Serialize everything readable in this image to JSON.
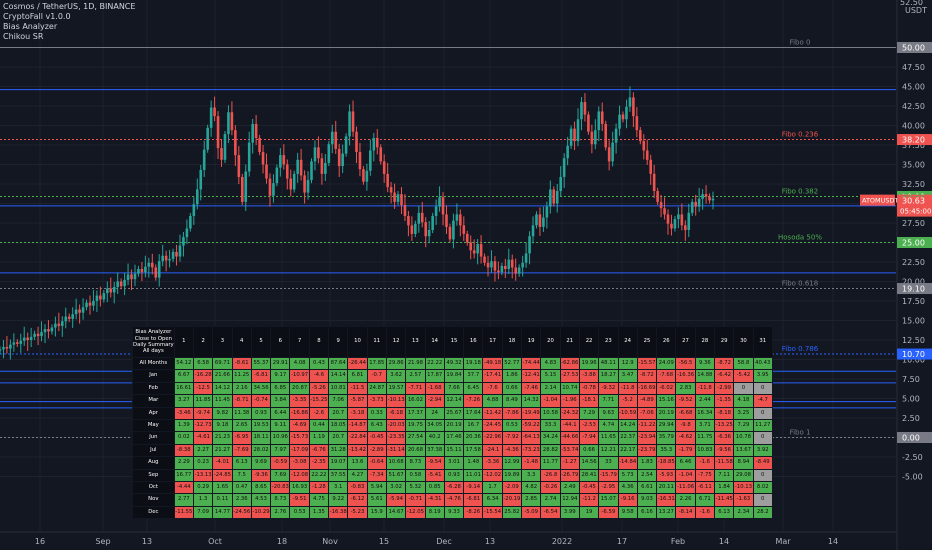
{
  "legend": {
    "title": "Cosmos / TetherUS, 1D, BINANCE",
    "indicators": [
      "CryptoFall v1.0.0",
      "Bias Analyzer",
      "Chikou SR"
    ]
  },
  "axis": {
    "currency": "USDT",
    "y_ticks": [
      50.0,
      47.5,
      45.0,
      42.5,
      40.0,
      37.5,
      35.0,
      32.5,
      30.0,
      27.5,
      25.0,
      22.5,
      20.0,
      17.5,
      15.0,
      12.5,
      10.0,
      7.5,
      5.0,
      2.5,
      0.0,
      -2.5,
      -5.0
    ],
    "y_tick_labels": [
      "50.00",
      "47.50",
      "45.00",
      "42.50",
      "40.00",
      "37.50",
      "35.00",
      "32.50",
      "30.00",
      "27.50",
      "25.00",
      "22.50",
      "20.00",
      "17.50",
      "15.00",
      "12.50",
      "10.00",
      "7.50",
      "5.00",
      "2.50",
      "0.00",
      "-2.50",
      "-5.00"
    ],
    "top_partial_label": "52.50",
    "x_labels": [
      "16",
      "Sep",
      "13",
      "Oct",
      "18",
      "Nov",
      "15",
      "Dec",
      "13",
      "2022",
      "17",
      "Feb",
      "14",
      "Mar",
      "14"
    ]
  },
  "price_badges": {
    "last_price": "30.90",
    "symbol": "ATOMUSDT",
    "close": "30.63",
    "countdown": "05:45:00"
  },
  "colors": {
    "background": "#131722",
    "up": "#26a69a",
    "down": "#ef5350",
    "blue_line": "#2962ff",
    "green_line": "#4caf50",
    "red_line": "#ef5350",
    "fibo_gray": "#787b86"
  },
  "chart_data": {
    "type": "candlestick",
    "title": "Cosmos / TetherUS, 1D, BINANCE",
    "ylabel": "USDT",
    "ylim": [
      -6.5,
      53.5
    ],
    "x_range": [
      "2021-08-02",
      "2022-03-24"
    ],
    "candle_closes": [
      11.3,
      11.6,
      11.4,
      11.9,
      12.2,
      12.0,
      12.4,
      12.8,
      12.5,
      12.9,
      13.3,
      13.0,
      13.5,
      13.9,
      13.6,
      14.1,
      14.6,
      14.3,
      14.9,
      15.5,
      15.2,
      15.8,
      16.4,
      16.0,
      16.7,
      17.3,
      16.9,
      17.5,
      18.2,
      17.7,
      18.5,
      19.1,
      18.6,
      19.3,
      20.0,
      19.4,
      20.2,
      20.9,
      20.3,
      21.0,
      21.6,
      21.2,
      21.9,
      22.4,
      21.8,
      20.5,
      22.6,
      23.3,
      22.7,
      22.9,
      23.8,
      23.2,
      24.6,
      25.7,
      26.8,
      28.4,
      29.9,
      31.8,
      34.3,
      36.9,
      39.7,
      42.3,
      41.2,
      37.1,
      35.6,
      38.9,
      41.7,
      39.4,
      36.2,
      33.4,
      30.2,
      34.1,
      37.8,
      40.2,
      38.4,
      36.6,
      35.0,
      33.2,
      31.0,
      32.6,
      34.6,
      36.2,
      35.0,
      33.2,
      31.8,
      33.8,
      35.6,
      33.6,
      31.4,
      33.0,
      35.4,
      37.2,
      35.8,
      33.8,
      35.2,
      37.6,
      39.2,
      37.0,
      34.8,
      36.4,
      38.6,
      41.8,
      39.2,
      36.6,
      34.4,
      32.8,
      34.2,
      36.8,
      38.4,
      37.2,
      35.4,
      33.8,
      32.1,
      31.4,
      30.2,
      31.2,
      29.8,
      28.4,
      27.2,
      26.1,
      27.4,
      28.8,
      27.6,
      25.8,
      26.6,
      28.4,
      29.6,
      30.8,
      28.6,
      27.0,
      25.4,
      27.8,
      28.6,
      27.2,
      26.1,
      25.0,
      24.0,
      23.6,
      24.8,
      23.2,
      22.4,
      21.8,
      22.6,
      21.4,
      21.2,
      22.0,
      21.6,
      22.8,
      21.8,
      21.0,
      21.8,
      22.4,
      23.6,
      25.8,
      27.2,
      28.6,
      27.0,
      28.2,
      29.6,
      31.8,
      30.0,
      31.6,
      33.4,
      35.8,
      37.4,
      39.6,
      38.0,
      40.8,
      43.0,
      41.4,
      39.2,
      37.6,
      39.4,
      41.8,
      40.2,
      37.2,
      35.4,
      37.8,
      39.6,
      41.4,
      40.8,
      42.4,
      43.6,
      41.2,
      39.4,
      38.0,
      36.8,
      35.6,
      33.8,
      31.6,
      30.2,
      29.4,
      28.6,
      27.4,
      26.8,
      28.0,
      28.6,
      27.2,
      26.6,
      28.8,
      30.2,
      29.6,
      30.6,
      31.2,
      30.9,
      30.4,
      30.63
    ],
    "horizontal_lines": [
      {
        "label": "Fibo 0",
        "value": 50.0,
        "value_label": "50.00",
        "style": "solid",
        "color": "#787b86"
      },
      {
        "label": "",
        "value": 44.6,
        "style": "solid",
        "color": "#2962ff"
      },
      {
        "label": "Fibo 0.236",
        "value": 38.2,
        "value_label": "38.20",
        "style": "dotted",
        "color": "#ef5350"
      },
      {
        "label": "Fibo 0.382",
        "value": 30.9,
        "value_label": "30.90",
        "style": "dotted",
        "color": "#4caf50"
      },
      {
        "label": "",
        "value": 29.7,
        "style": "solid",
        "color": "#2962ff"
      },
      {
        "label": "Hosoda 50%",
        "value": 25.0,
        "value_label": "25.00",
        "style": "dotted",
        "color": "#4caf50"
      },
      {
        "label": "",
        "value": 21.1,
        "style": "solid",
        "color": "#2962ff"
      },
      {
        "label": "Fibo 0.618",
        "value": 19.1,
        "value_label": "19.10",
        "style": "dotted",
        "color": "#787b86"
      },
      {
        "label": "Fibo 0.786",
        "value": 10.7,
        "value_label": "10.70",
        "style": "dotted",
        "color": "#2962ff"
      },
      {
        "label": "",
        "value": 8.5,
        "style": "solid",
        "color": "#2962ff"
      },
      {
        "label": "",
        "value": 7.0,
        "style": "solid",
        "color": "#2962ff"
      },
      {
        "label": "",
        "value": 4.6,
        "style": "solid",
        "color": "#2962ff"
      },
      {
        "label": "",
        "value": 3.8,
        "style": "solid",
        "color": "#2962ff"
      },
      {
        "label": "Fibo 1",
        "value": 0.0,
        "value_label": "0.00",
        "style": "dotted",
        "color": "#787b86"
      }
    ]
  },
  "bias_table": {
    "header_label": [
      "Bias Analyzer",
      "Close to Open",
      "Daily Summary",
      "All days"
    ],
    "days": [
      "1",
      "2",
      "3",
      "4",
      "5",
      "6",
      "7",
      "8",
      "9",
      "10",
      "11",
      "12",
      "13",
      "14",
      "15",
      "16",
      "17",
      "18",
      "19",
      "20",
      "21",
      "22",
      "23",
      "24",
      "25",
      "26",
      "27",
      "28",
      "29",
      "30",
      "31"
    ],
    "rows": [
      {
        "label": "All Months",
        "values": [
          "54.12",
          "6.58",
          "69.71",
          "-8.61",
          "55.37",
          "29.91",
          "4.08",
          "0.43",
          "87.64",
          "-26.44",
          "17.85",
          "29.86",
          "21.98",
          "22.22",
          "49.32",
          "19.18",
          "-49.18",
          "52.77",
          "-74.44",
          "4.83",
          "-62.86",
          "19.96",
          "48.11",
          "12.9",
          "-15.57",
          "24.09",
          "-56.5",
          "9.36",
          "-8.72",
          "58.8",
          "40.43"
        ]
      },
      {
        "label": "Jan",
        "values": [
          "6.67",
          "-16.28",
          "21.66",
          "11.25",
          "-6.81",
          "9.17",
          "-10.97",
          "-4.6",
          "14.14",
          "6.81",
          "-0.7",
          "3.62",
          "2.57",
          "17.87",
          "19.84",
          "37.7",
          "-17.41",
          "1.86",
          "-12.41",
          "5.15",
          "-27.53",
          "-3.88",
          "18.27",
          "3.47",
          "-8.72",
          "-7.68",
          "-16.36",
          "14.88",
          "-6.42",
          "-5.42",
          "3.95"
        ]
      },
      {
        "label": "Feb",
        "values": [
          "16.61",
          "-12.5",
          "14.12",
          "2.16",
          "34.56",
          "6.85",
          "20.87",
          "-5.26",
          "10.81",
          "-11.5",
          "24.87",
          "19.57",
          "-7.71",
          "-1.68",
          "7.66",
          "6.45",
          "-7.6",
          "0.66",
          "-7.46",
          "2.14",
          "10.74",
          "-0.78",
          "-9.32",
          "-11.8",
          "-16.69",
          "-6.02",
          "2.83",
          "-11.8",
          "-2.99",
          "0",
          "0"
        ]
      },
      {
        "label": "Mar",
        "values": [
          "3.27",
          "11.85",
          "11.45",
          "-8.71",
          "-0.74",
          "3.84",
          "-3.35",
          "-15.25",
          "7.06",
          "-5.87",
          "-3.73",
          "-10.13",
          "16.02",
          "-2.94",
          "12.14",
          "-7.26",
          "4.88",
          "8.49",
          "14.32",
          "-1.04",
          "-1.96",
          "-18.1",
          "7.71",
          "-5.2",
          "-4.89",
          "15.16",
          "-9.52",
          "2.44",
          "-1.35",
          "4.18",
          "-4.7"
        ]
      },
      {
        "label": "Apr",
        "values": [
          "-3.46",
          "-9.74",
          "9.82",
          "11.38",
          "0.93",
          "6.44",
          "-16.86",
          "-2.6",
          "20.7",
          "-3.18",
          "0.33",
          "-6.18",
          "17.37",
          "24",
          "25.67",
          "17.64",
          "-11.42",
          "-7.86",
          "-19.49",
          "10.58",
          "-24.32",
          "7.29",
          "9.63",
          "-10.59",
          "-7.06",
          "20.19",
          "-6.68",
          "16.34",
          "-8.18",
          "3.25",
          "0"
        ]
      },
      {
        "label": "May",
        "values": [
          "1.39",
          "-12.73",
          "9.18",
          "2.65",
          "19.53",
          "9.11",
          "-4.69",
          "0.44",
          "18.05",
          "-14.87",
          "6.43",
          "-20.03",
          "19.75",
          "34.05",
          "20.19",
          "16.7",
          "-24.45",
          "0.53",
          "-59.22",
          "33.3",
          "-44.1",
          "-2.53",
          "4.74",
          "14.24",
          "-11.22",
          "29.94",
          "-9.8",
          "3.71",
          "-13.25",
          "7.29",
          "11.27"
        ]
      },
      {
        "label": "Jun",
        "values": [
          "0.02",
          "-4.61",
          "21.23",
          "-6.95",
          "18.11",
          "10.96",
          "-15.73",
          "1.19",
          "20.7",
          "-22.84",
          "-0.45",
          "-23.35",
          "27.54",
          "40.2",
          "17.46",
          "20.36",
          "-22.96",
          "-7.92",
          "-64.13",
          "34.24",
          "-44.66",
          "-7.94",
          "11.65",
          "22.37",
          "-23.94",
          "35.79",
          "-4.62",
          "11.75",
          "-6.36",
          "10.78",
          "0"
        ]
      },
      {
        "label": "Jul",
        "values": [
          "-8.38",
          "2.27",
          "21.27",
          "-7.69",
          "28.02",
          "7.97",
          "-17.09",
          "-6.76",
          "31.28",
          "-13.42",
          "-2.89",
          "-31.14",
          "20.68",
          "37.38",
          "15.11",
          "17.58",
          "-24.1",
          "-4.36",
          "-73.23",
          "28.82",
          "-53.74",
          "0.66",
          "12.21",
          "22.17",
          "-23.79",
          "35.3",
          "-1.79",
          "10.83",
          "-9.56",
          "13.67",
          "3.92"
        ]
      },
      {
        "label": "Aug",
        "values": [
          "2.29",
          "0.23",
          "-4.01",
          "6.13",
          "9.69",
          "-0.59",
          "-3.08",
          "-2.35",
          "19.07",
          "13.6",
          "-0.64",
          "10.68",
          "8.73",
          "-9.54",
          "3.01",
          "1.48",
          "-3.36",
          "12.99",
          "-1.48",
          "11.77",
          "-1.27",
          "14.56",
          "33",
          "-14.84",
          "1.83",
          "-18.85",
          "6.46",
          "-1.6",
          "-11.58",
          "8.94",
          "-8.49"
        ]
      },
      {
        "label": "Sep",
        "values": [
          "16.77",
          "-13.13",
          "-24.85",
          "7.5",
          "-9.36",
          "7.69",
          "-12.08",
          "22.22",
          "37.55",
          "4.27",
          "-7.34",
          "51.67",
          "0.58",
          "-5.41",
          "0.93",
          "11.01",
          "-12.02",
          "19.89",
          "3.3",
          "-26.8",
          "-26.79",
          "28.41",
          "-15.79",
          "5.73",
          "2.54",
          "-5.93",
          "-1.04",
          "-7.75",
          "7.11",
          "29.08",
          "0"
        ]
      },
      {
        "label": "Oct",
        "values": [
          "-4.44",
          "0.29",
          "1.65",
          "0.47",
          "8.65",
          "-20.83",
          "16.93",
          "-1.28",
          "3.1",
          "-0.83",
          "5.94",
          "3.02",
          "5.32",
          "0.85",
          "-6.28",
          "-9.14",
          "1.7",
          "-2.09",
          "4.82",
          "-0.26",
          "2.49",
          "-0.45",
          "-2.95",
          "4.36",
          "6.61",
          "20.11",
          "-11.06",
          "-6.11",
          "1.84",
          "-10.13",
          "8.02"
        ]
      },
      {
        "label": "Nov",
        "values": [
          "2.77",
          "1.3",
          "0.11",
          "2.36",
          "4.53",
          "8.73",
          "-9.51",
          "4.75",
          "9.22",
          "-6.12",
          "5.61",
          "-5.94",
          "-0.71",
          "-4.31",
          "-4.76",
          "-6.81",
          "6.34",
          "-20.19",
          "2.85",
          "2.74",
          "12.94",
          "-11.2",
          "15.07",
          "-9.16",
          "9.03",
          "-16.31",
          "2.26",
          "6.71",
          "-11.45",
          "-1.63",
          "0"
        ]
      },
      {
        "label": "Dec",
        "values": [
          "-11.55",
          "7.09",
          "14.77",
          "-24.56",
          "-10.29",
          "2.76",
          "0.53",
          "1.35",
          "-16.38",
          "-5.23",
          "15.9",
          "14.67",
          "-12.05",
          "8.19",
          "9.33",
          "-8.26",
          "-15.54",
          "25.82",
          "-5.09",
          "-6.54",
          "3.99",
          "19",
          "-6.59",
          "9.58",
          "6.16",
          "13.27",
          "-8.14",
          "-1.6",
          "6.13",
          "2.34",
          "28.2"
        ]
      }
    ]
  }
}
